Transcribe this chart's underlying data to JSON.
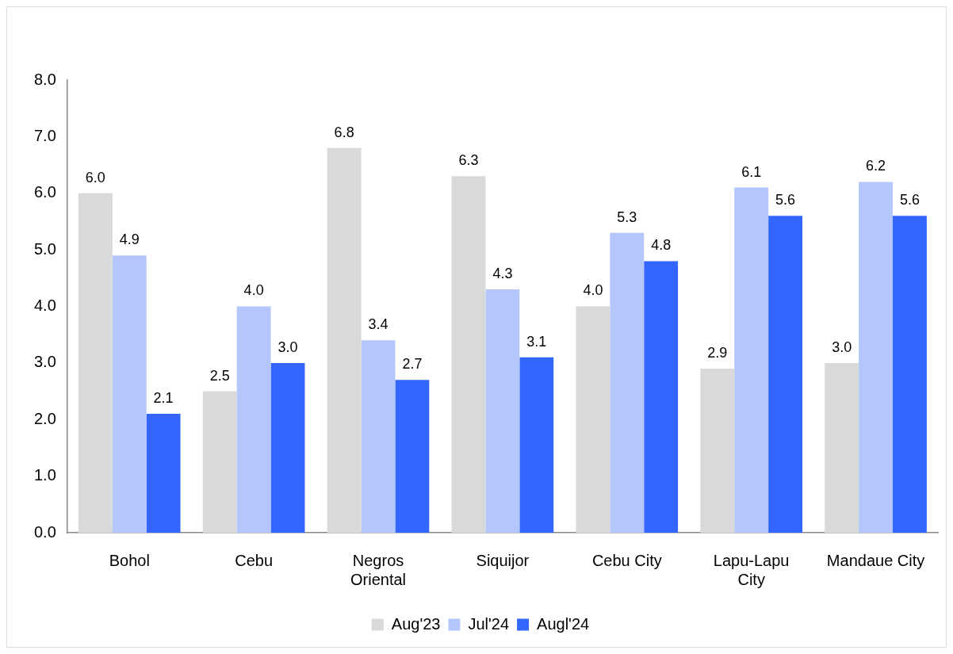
{
  "chart_data": {
    "type": "bar",
    "categories": [
      "Bohol",
      "Cebu",
      "Negros Oriental",
      "Siquijor",
      "Cebu City",
      "Lapu-Lapu City",
      "Mandaue City"
    ],
    "series": [
      {
        "name": "Aug'23",
        "color": "#d9d9d9",
        "values": [
          6.0,
          2.5,
          6.8,
          6.3,
          4.0,
          2.9,
          3.0
        ],
        "value_labels": [
          "6.0",
          "2.5",
          "6.8",
          "6.3",
          "4.0",
          "2.9",
          "3.0"
        ]
      },
      {
        "name": "Jul'24",
        "color": "#b4c6fb",
        "values": [
          4.9,
          4.0,
          3.4,
          4.3,
          5.3,
          6.1,
          6.2
        ],
        "value_labels": [
          "4.9",
          "4.0",
          "3.4",
          "4.3",
          "5.3",
          "6.1",
          "6.2"
        ]
      },
      {
        "name": "Augl'24",
        "color": "#3366ff",
        "values": [
          2.1,
          3.0,
          2.7,
          3.1,
          4.8,
          5.6,
          5.6
        ],
        "value_labels": [
          "2.1",
          "3.0",
          "2.7",
          "3.1",
          "4.8",
          "5.6",
          "5.6"
        ]
      }
    ],
    "ylim": [
      0,
      8
    ],
    "yticks": [
      {
        "value": 0,
        "label": "0.0"
      },
      {
        "value": 1,
        "label": "1.0"
      },
      {
        "value": 2,
        "label": "2.0"
      },
      {
        "value": 3,
        "label": "3.0"
      },
      {
        "value": 4,
        "label": "4.0"
      },
      {
        "value": 5,
        "label": "5.0"
      },
      {
        "value": 6,
        "label": "6.0"
      },
      {
        "value": 7,
        "label": "7.0"
      },
      {
        "value": 8,
        "label": "8.0"
      }
    ],
    "grid": false,
    "legend": "bottom"
  }
}
